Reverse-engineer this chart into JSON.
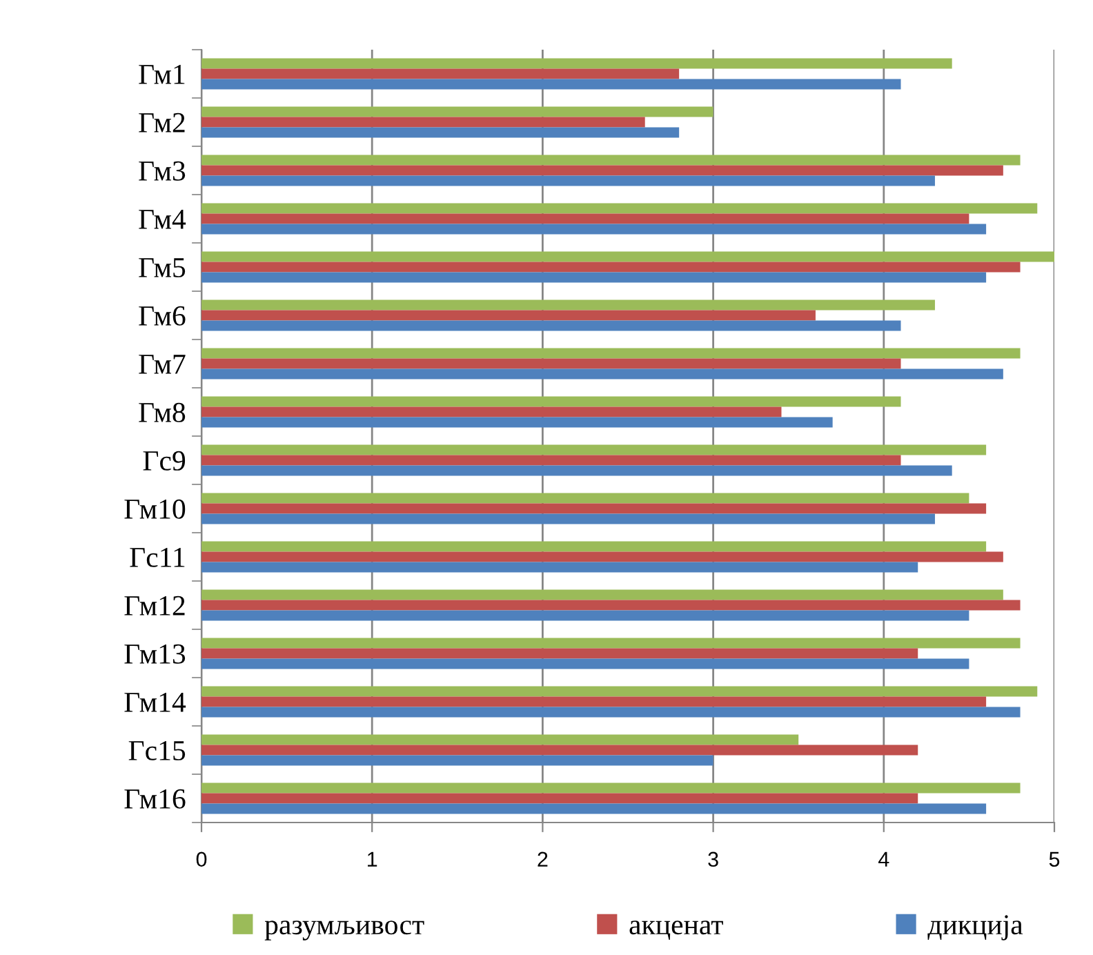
{
  "chart_data": {
    "type": "bar",
    "orientation": "horizontal",
    "categories": [
      "Гм1",
      "Гм2",
      "Гм3",
      "Гм4",
      "Гм5",
      "Гм6",
      "Гм7",
      "Гм8",
      "Гс9",
      "Гм10",
      "Гс11",
      "Гм12",
      "Гм13",
      "Гм14",
      "Гс15",
      "Гм16"
    ],
    "series": [
      {
        "name": "разумљивост",
        "color": "#9bbb59",
        "values": [
          4.4,
          3.0,
          4.8,
          4.9,
          5.0,
          4.3,
          4.8,
          4.1,
          4.6,
          4.5,
          4.6,
          4.7,
          4.8,
          4.9,
          3.5,
          4.8
        ]
      },
      {
        "name": "акценат",
        "color": "#c0504d",
        "values": [
          2.8,
          2.6,
          4.7,
          4.5,
          4.8,
          3.6,
          4.1,
          3.4,
          4.1,
          4.6,
          4.7,
          4.8,
          4.2,
          4.6,
          4.2,
          4.2
        ]
      },
      {
        "name": "дикција",
        "color": "#4f81bd",
        "values": [
          4.1,
          2.8,
          4.3,
          4.6,
          4.6,
          4.1,
          4.7,
          3.7,
          4.4,
          4.3,
          4.2,
          4.5,
          4.5,
          4.8,
          3.0,
          4.6
        ]
      }
    ],
    "xlim": [
      0,
      5
    ],
    "xticks": [
      0,
      1,
      2,
      3,
      4,
      5
    ],
    "grid": "x",
    "legend": "bottom"
  }
}
